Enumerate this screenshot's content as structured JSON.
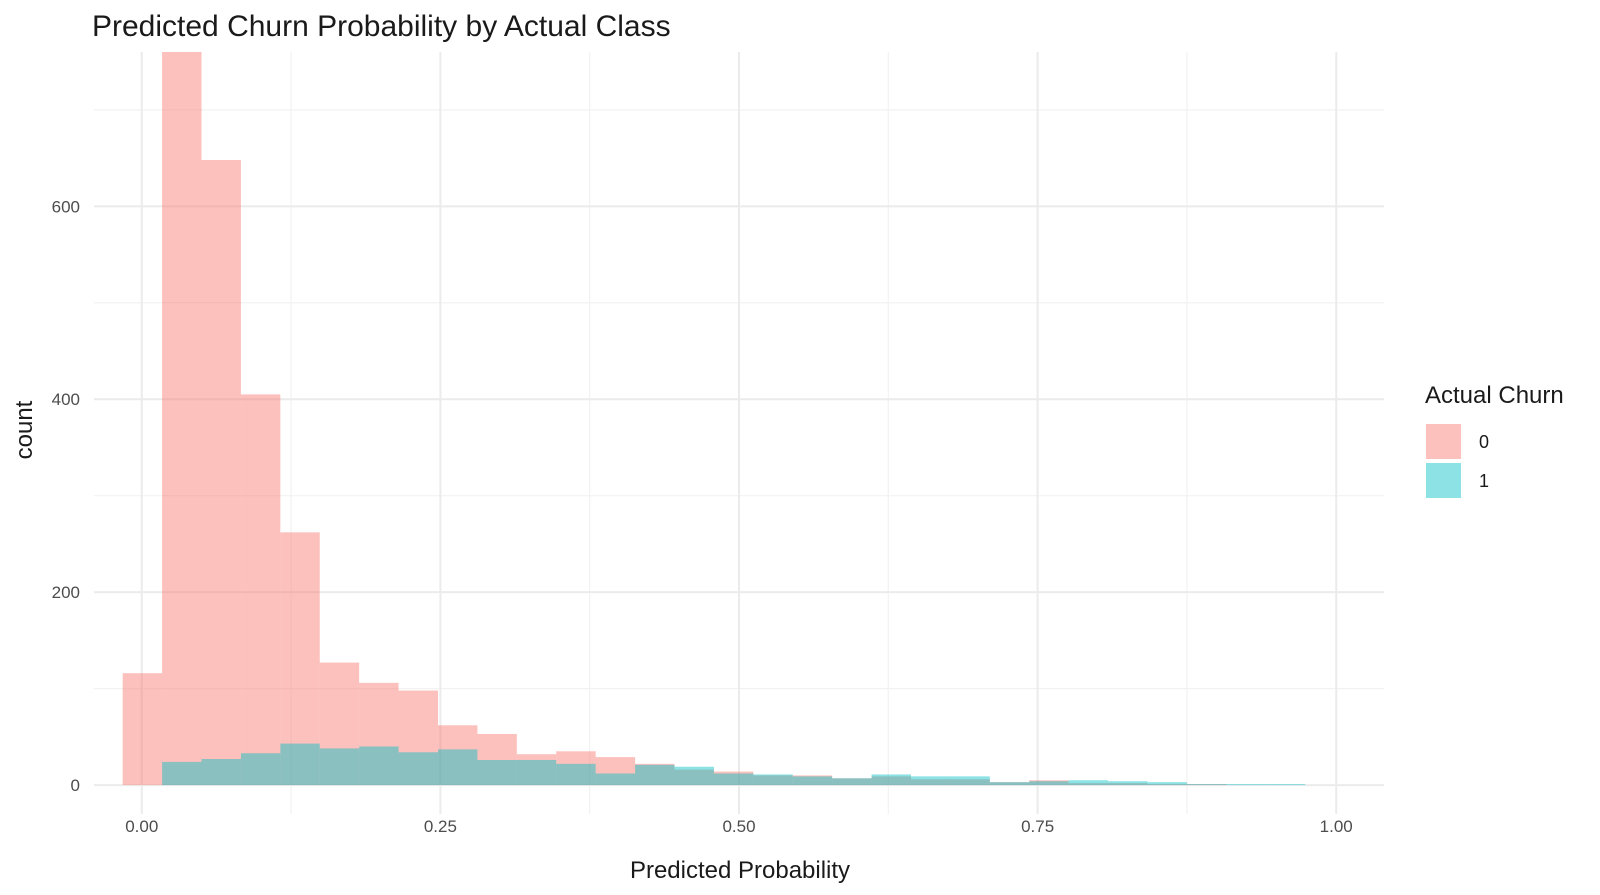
{
  "chart_data": {
    "type": "histogram",
    "title": "Predicted Churn Probability by Actual Class",
    "xlabel": "Predicted Probability",
    "ylabel": "count",
    "xlim": [
      -0.04,
      1.04
    ],
    "ylim": [
      -30,
      760
    ],
    "x_ticks": [
      0.0,
      0.25,
      0.5,
      0.75,
      1.0
    ],
    "x_tick_labels": [
      "0.00",
      "0.25",
      "0.50",
      "0.75",
      "1.00"
    ],
    "y_ticks": [
      0,
      200,
      400,
      600
    ],
    "y_tick_labels": [
      "0",
      "200",
      "400",
      "600"
    ],
    "grid": true,
    "legend": {
      "title": "Actual Churn",
      "position": "right"
    },
    "series": [
      {
        "name": "0",
        "color": "#F8766D",
        "bins": [
          {
            "x0": -0.016,
            "x1": 0.017,
            "count": 116
          },
          {
            "x0": 0.017,
            "x1": 0.05,
            "count": 760
          },
          {
            "x0": 0.05,
            "x1": 0.083,
            "count": 648
          },
          {
            "x0": 0.083,
            "x1": 0.116,
            "count": 405
          },
          {
            "x0": 0.116,
            "x1": 0.149,
            "count": 262
          },
          {
            "x0": 0.149,
            "x1": 0.182,
            "count": 127
          },
          {
            "x0": 0.182,
            "x1": 0.215,
            "count": 106
          },
          {
            "x0": 0.215,
            "x1": 0.248,
            "count": 98
          },
          {
            "x0": 0.248,
            "x1": 0.281,
            "count": 62
          },
          {
            "x0": 0.281,
            "x1": 0.314,
            "count": 53
          },
          {
            "x0": 0.314,
            "x1": 0.347,
            "count": 32
          },
          {
            "x0": 0.347,
            "x1": 0.38,
            "count": 35
          },
          {
            "x0": 0.38,
            "x1": 0.413,
            "count": 29
          },
          {
            "x0": 0.413,
            "x1": 0.446,
            "count": 22
          },
          {
            "x0": 0.446,
            "x1": 0.479,
            "count": 16
          },
          {
            "x0": 0.479,
            "x1": 0.512,
            "count": 14
          },
          {
            "x0": 0.512,
            "x1": 0.545,
            "count": 10
          },
          {
            "x0": 0.545,
            "x1": 0.578,
            "count": 10
          },
          {
            "x0": 0.578,
            "x1": 0.611,
            "count": 7
          },
          {
            "x0": 0.611,
            "x1": 0.644,
            "count": 9
          },
          {
            "x0": 0.644,
            "x1": 0.677,
            "count": 6
          },
          {
            "x0": 0.677,
            "x1": 0.71,
            "count": 6
          },
          {
            "x0": 0.71,
            "x1": 0.743,
            "count": 3
          },
          {
            "x0": 0.743,
            "x1": 0.776,
            "count": 5
          },
          {
            "x0": 0.776,
            "x1": 0.809,
            "count": 2
          },
          {
            "x0": 0.809,
            "x1": 0.842,
            "count": 2
          },
          {
            "x0": 0.842,
            "x1": 0.875,
            "count": 1
          },
          {
            "x0": 0.875,
            "x1": 0.908,
            "count": 1
          }
        ]
      },
      {
        "name": "1",
        "color": "#00BFC4",
        "bins": [
          {
            "x0": 0.017,
            "x1": 0.05,
            "count": 24
          },
          {
            "x0": 0.05,
            "x1": 0.083,
            "count": 27
          },
          {
            "x0": 0.083,
            "x1": 0.116,
            "count": 33
          },
          {
            "x0": 0.116,
            "x1": 0.149,
            "count": 43
          },
          {
            "x0": 0.149,
            "x1": 0.182,
            "count": 38
          },
          {
            "x0": 0.182,
            "x1": 0.215,
            "count": 40
          },
          {
            "x0": 0.215,
            "x1": 0.248,
            "count": 34
          },
          {
            "x0": 0.248,
            "x1": 0.281,
            "count": 37
          },
          {
            "x0": 0.281,
            "x1": 0.314,
            "count": 26
          },
          {
            "x0": 0.314,
            "x1": 0.347,
            "count": 26
          },
          {
            "x0": 0.347,
            "x1": 0.38,
            "count": 22
          },
          {
            "x0": 0.38,
            "x1": 0.413,
            "count": 12
          },
          {
            "x0": 0.413,
            "x1": 0.446,
            "count": 21
          },
          {
            "x0": 0.446,
            "x1": 0.479,
            "count": 19
          },
          {
            "x0": 0.479,
            "x1": 0.512,
            "count": 12
          },
          {
            "x0": 0.512,
            "x1": 0.545,
            "count": 11
          },
          {
            "x0": 0.545,
            "x1": 0.578,
            "count": 9
          },
          {
            "x0": 0.578,
            "x1": 0.611,
            "count": 7
          },
          {
            "x0": 0.611,
            "x1": 0.644,
            "count": 11
          },
          {
            "x0": 0.644,
            "x1": 0.677,
            "count": 9
          },
          {
            "x0": 0.677,
            "x1": 0.71,
            "count": 9
          },
          {
            "x0": 0.71,
            "x1": 0.743,
            "count": 3
          },
          {
            "x0": 0.743,
            "x1": 0.776,
            "count": 4
          },
          {
            "x0": 0.776,
            "x1": 0.809,
            "count": 5
          },
          {
            "x0": 0.809,
            "x1": 0.842,
            "count": 4
          },
          {
            "x0": 0.842,
            "x1": 0.875,
            "count": 3
          },
          {
            "x0": 0.875,
            "x1": 0.908,
            "count": 1
          },
          {
            "x0": 0.908,
            "x1": 0.941,
            "count": 1
          },
          {
            "x0": 0.941,
            "x1": 0.974,
            "count": 1
          }
        ]
      }
    ]
  }
}
